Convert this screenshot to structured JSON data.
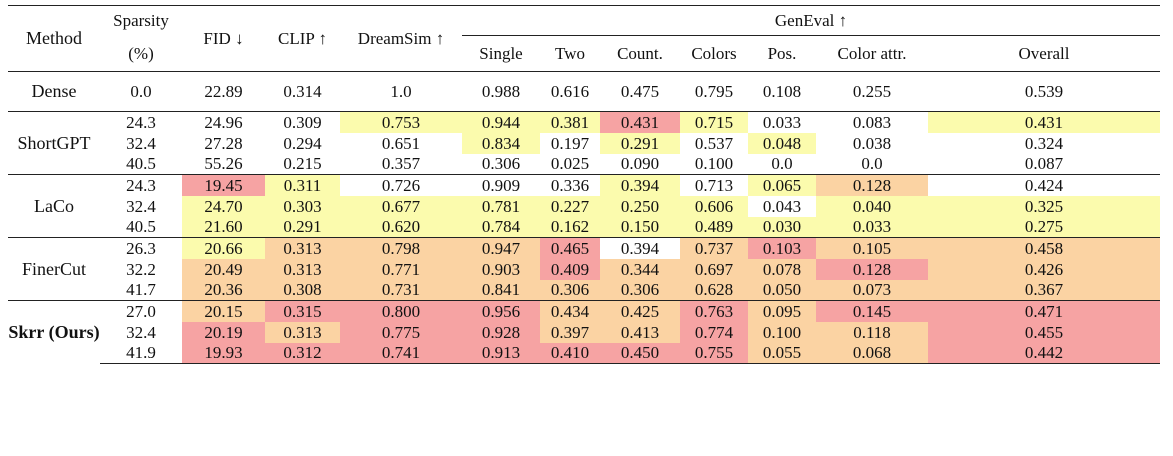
{
  "columns": {
    "method": "Method",
    "sparsity": "Sparsity",
    "sparsity_unit": "(%)",
    "fid": "FID ↓",
    "clip": "CLIP ↑",
    "dreamsim": "DreamSim ↑",
    "geneval": "GenEval ↑",
    "single": "Single",
    "two": "Two",
    "count": "Count.",
    "colors": "Colors",
    "pos": "Pos.",
    "color_attr": "Color attr.",
    "overall": "Overall"
  },
  "colors": {
    "yellow": "#fbfbad",
    "orange": "#fbd3a3",
    "pink": "#f6a3a3"
  },
  "groups": [
    {
      "method": "Dense",
      "rows": [
        {
          "cells": [
            "0.0",
            "22.89",
            "0.314",
            "1.0",
            "0.988",
            "0.616",
            "0.475",
            "0.795",
            "0.108",
            "0.255",
            "0.539"
          ]
        }
      ]
    },
    {
      "method": "ShortGPT",
      "rows": [
        {
          "cells": [
            "24.3",
            "24.96",
            "0.309",
            "0.753",
            "0.944",
            "0.381",
            "0.431",
            "0.715",
            "0.033",
            "0.083",
            "0.431"
          ]
        },
        {
          "cells": [
            "32.4",
            "27.28",
            "0.294",
            "0.651",
            "0.834",
            "0.197",
            "0.291",
            "0.537",
            "0.048",
            "0.038",
            "0.324"
          ]
        },
        {
          "cells": [
            "40.5",
            "55.26",
            "0.215",
            "0.357",
            "0.306",
            "0.025",
            "0.090",
            "0.100",
            "0.0",
            "0.0",
            "0.087"
          ]
        }
      ]
    },
    {
      "method": "LaCo",
      "rows": [
        {
          "cells": [
            "24.3",
            "19.45",
            "0.311",
            "0.726",
            "0.909",
            "0.336",
            "0.394",
            "0.713",
            "0.065",
            "0.128",
            "0.424"
          ]
        },
        {
          "cells": [
            "32.4",
            "24.70",
            "0.303",
            "0.677",
            "0.781",
            "0.227",
            "0.250",
            "0.606",
            "0.043",
            "0.040",
            "0.325"
          ]
        },
        {
          "cells": [
            "40.5",
            "21.60",
            "0.291",
            "0.620",
            "0.784",
            "0.162",
            "0.150",
            "0.489",
            "0.030",
            "0.033",
            "0.275"
          ]
        }
      ]
    },
    {
      "method": "FinerCut",
      "rows": [
        {
          "cells": [
            "26.3",
            "20.66",
            "0.313",
            "0.798",
            "0.947",
            "0.465",
            "0.394",
            "0.737",
            "0.103",
            "0.105",
            "0.458"
          ]
        },
        {
          "cells": [
            "32.2",
            "20.49",
            "0.313",
            "0.771",
            "0.903",
            "0.409",
            "0.344",
            "0.697",
            "0.078",
            "0.128",
            "0.426"
          ]
        },
        {
          "cells": [
            "41.7",
            "20.36",
            "0.308",
            "0.731",
            "0.841",
            "0.306",
            "0.306",
            "0.628",
            "0.050",
            "0.073",
            "0.367"
          ]
        }
      ]
    },
    {
      "method": "Skrr (Ours)",
      "rows": [
        {
          "cells": [
            "27.0",
            "20.15",
            "0.315",
            "0.800",
            "0.956",
            "0.434",
            "0.425",
            "0.763",
            "0.095",
            "0.145",
            "0.471"
          ]
        },
        {
          "cells": [
            "32.4",
            "20.19",
            "0.313",
            "0.775",
            "0.928",
            "0.397",
            "0.413",
            "0.774",
            "0.100",
            "0.118",
            "0.455"
          ]
        },
        {
          "cells": [
            "41.9",
            "19.93",
            "0.312",
            "0.741",
            "0.913",
            "0.410",
            "0.450",
            "0.755",
            "0.055",
            "0.068",
            "0.442"
          ]
        }
      ]
    }
  ]
}
